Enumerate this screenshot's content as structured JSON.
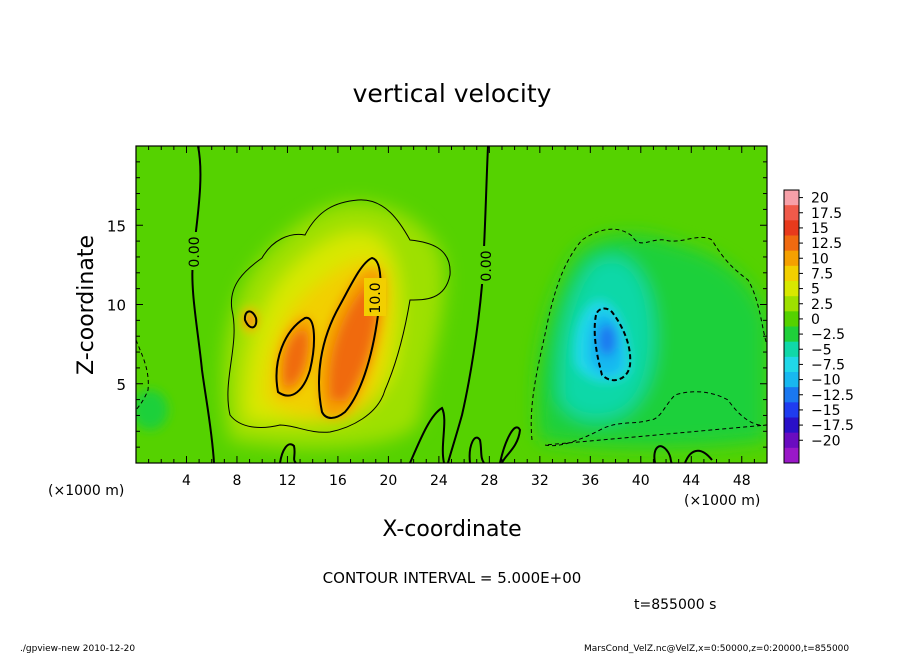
{
  "chart_data": {
    "type": "heatmap",
    "title": "vertical velocity",
    "xlabel": "X-coordinate",
    "ylabel": "Z-coordinate",
    "x_unit_label": "(×1000 m)",
    "y_unit_label": "(×1000 m)",
    "xlim": [
      0,
      50
    ],
    "ylim": [
      0,
      20
    ],
    "x_ticks": [
      4,
      8,
      12,
      16,
      20,
      24,
      28,
      32,
      36,
      40,
      44,
      48
    ],
    "y_ticks": [
      5,
      10,
      15
    ],
    "colorbar": {
      "labels": [
        "20",
        "17.5",
        "15",
        "12.5",
        "10",
        "7.5",
        "5",
        "2.5",
        "0",
        "−2.5",
        "−5",
        "−7.5",
        "−10",
        "−12.5",
        "−15",
        "−17.5",
        "−20"
      ],
      "levels": [
        20,
        17.5,
        15,
        12.5,
        10,
        7.5,
        5,
        2.5,
        0,
        -2.5,
        -5,
        -7.5,
        -10,
        -12.5,
        -15,
        -17.5,
        -20
      ],
      "colors": [
        "#f7a0a8",
        "#f05a4a",
        "#e83a1c",
        "#f06a10",
        "#f5a000",
        "#f2cf00",
        "#d8e800",
        "#9ee000",
        "#55d200",
        "#1fd03a",
        "#10d8a8",
        "#20d8e8",
        "#18b8f0",
        "#1a78f0",
        "#1f3cf0",
        "#2a10c8",
        "#6a0cc0",
        "#9a18c8"
      ]
    },
    "contour_interval": 5.0,
    "contour_labels": [
      "0.00",
      "10.0",
      "0.00"
    ],
    "features": [
      {
        "kind": "updraft",
        "x": 16.5,
        "z": 8.0,
        "max": 12.5
      },
      {
        "kind": "updraft",
        "x": 12.5,
        "z": 6.5,
        "max": 12.0
      },
      {
        "kind": "updraft",
        "x": 9.0,
        "z": 9.0,
        "max": 10.0
      },
      {
        "kind": "downdraft",
        "x": 37.5,
        "z": 7.5,
        "min": -11.0
      }
    ],
    "annotations": {
      "contour_interval_text": "CONTOUR INTERVAL = 5.000E+00",
      "time_text": "t=855000  s",
      "footer_left": "./gpview-new   2010-12-20",
      "footer_right": "MarsCond_VelZ.nc@VelZ,x=0:50000,z=0:20000,t=855000"
    }
  }
}
